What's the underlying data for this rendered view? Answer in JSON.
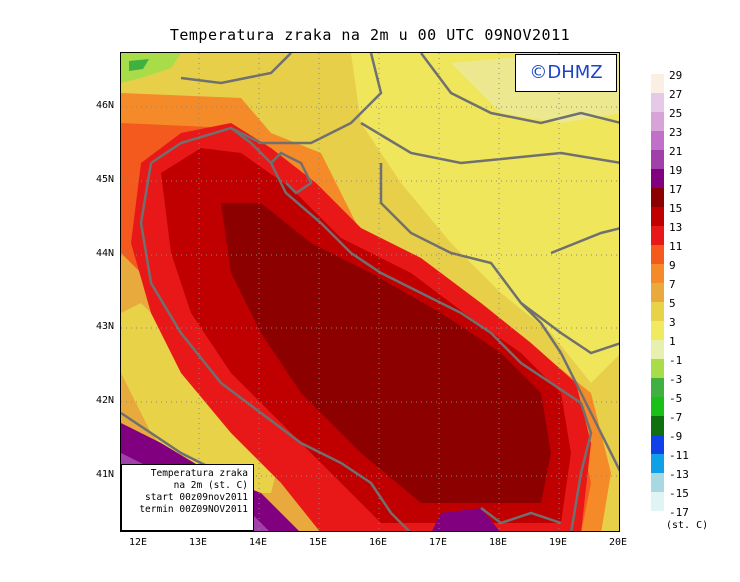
{
  "title": "Temperatura zraka na 2m u 00 UTC 09NOV2011",
  "logo_text": "©DHMZ",
  "info_box": {
    "line1": "Temperatura zraka",
    "line2": "na 2m (st. C)",
    "line3": "start 00z09nov2011",
    "line4": "termin 00Z09NOV2011"
  },
  "axes": {
    "lat_labels": [
      "46N",
      "45N",
      "44N",
      "43N",
      "42N",
      "41N"
    ],
    "lon_labels": [
      "12E",
      "13E",
      "14E",
      "15E",
      "16E",
      "17E",
      "18E",
      "19E",
      "20E"
    ]
  },
  "legend": {
    "unit": "(st. C)",
    "labels": [
      "29",
      "27",
      "25",
      "23",
      "21",
      "19",
      "17",
      "15",
      "13",
      "11",
      "9",
      "7",
      "5",
      "3",
      "1",
      "-1",
      "-3",
      "-5",
      "-7",
      "-9",
      "-11",
      "-13",
      "-15",
      "-17"
    ],
    "colors": [
      "#fbeee3",
      "#e6c9e6",
      "#d8a4d8",
      "#c070c8",
      "#a040a8",
      "#800080",
      "#8c0000",
      "#c00000",
      "#e81818",
      "#f45a1e",
      "#f48a28",
      "#e8aa3c",
      "#e8d248",
      "#f0ea60",
      "#e8f0b0",
      "#a8dc48",
      "#40b040",
      "#18c018",
      "#107010",
      "#1040e8",
      "#10a0e8",
      "#a8d8e0",
      "#e0f4f4"
    ]
  }
}
